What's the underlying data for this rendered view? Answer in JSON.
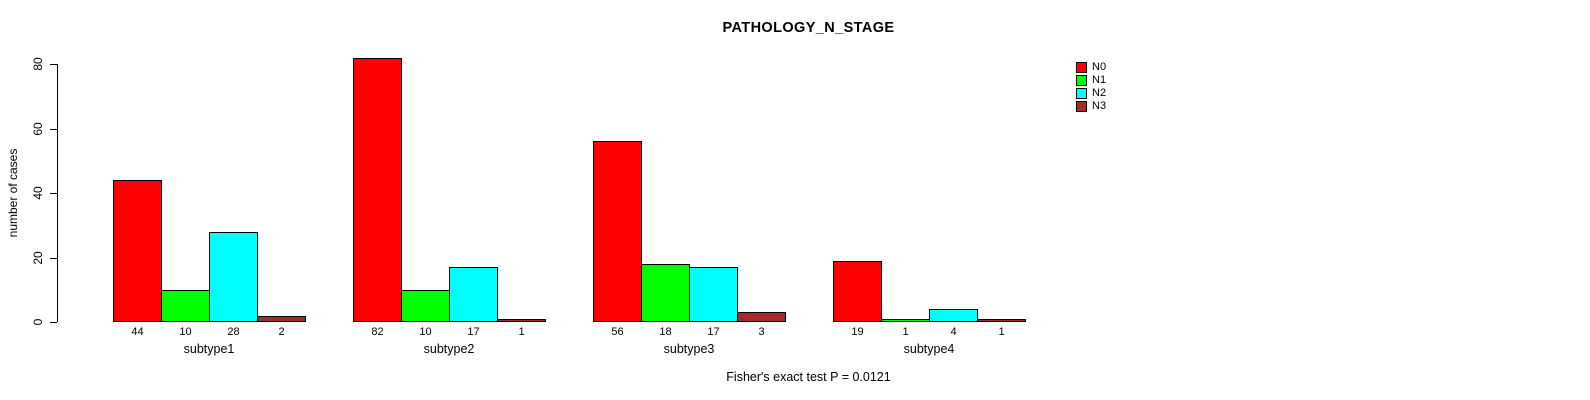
{
  "chart_data": {
    "type": "bar",
    "title": "PATHOLOGY_N_STAGE",
    "ylabel": "number of cases",
    "xlabel": "",
    "ylim": [
      0,
      80
    ],
    "yticks": [
      0,
      20,
      40,
      60,
      80
    ],
    "grid": false,
    "legend_position": "top-right",
    "categories": [
      "subtype1",
      "subtype2",
      "subtype3",
      "subtype4"
    ],
    "series": [
      {
        "name": "N0",
        "color": "#FF0000",
        "values": [
          44,
          82,
          56,
          19
        ]
      },
      {
        "name": "N1",
        "color": "#00FF00",
        "values": [
          10,
          10,
          18,
          1
        ]
      },
      {
        "name": "N2",
        "color": "#00FFFF",
        "values": [
          28,
          17,
          17,
          4
        ]
      },
      {
        "name": "N3",
        "color": "#A52A2A",
        "values": [
          2,
          1,
          3,
          1
        ]
      }
    ],
    "bar_value_labels_shown": true,
    "footnote": "Fisher's exact test P = 0.0121"
  }
}
